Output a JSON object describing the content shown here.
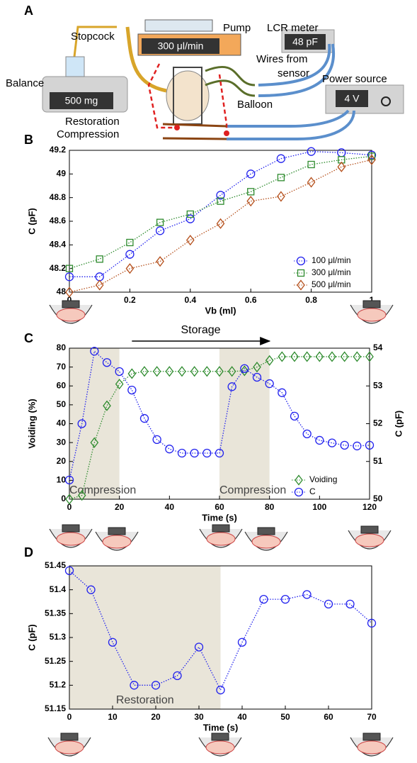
{
  "diagram": {
    "label": "A",
    "stopcock": "Stopcock",
    "pump": "Pump",
    "pump_display": "300 μl/min",
    "lcr": "LCR meter",
    "lcr_display": "48 pF",
    "wires": [
      "Wires from",
      "sensor"
    ],
    "power": "Power source",
    "power_display": "4 V",
    "balance": "Balance",
    "balance_display": "500 mg",
    "balloon": "Balloon",
    "restoration": "Restoration",
    "compression": "Compression"
  },
  "chart_data": [
    {
      "type": "line",
      "label": "B",
      "xlabel": "Vb (ml)",
      "ylabel": "C (pF)",
      "x": [
        0,
        0.1,
        0.2,
        0.3,
        0.4,
        0.5,
        0.6,
        0.7,
        0.8,
        0.9,
        1
      ],
      "xlim": [
        0,
        1
      ],
      "xticks": [
        0,
        0.2,
        0.4,
        0.6,
        0.8,
        1
      ],
      "ylim": [
        48,
        49.2
      ],
      "yticks": [
        48,
        48.2,
        48.4,
        48.6,
        48.8,
        49,
        49.2
      ],
      "legend": "lower right",
      "series": [
        {
          "name": "100 μl/min",
          "color": "#2222ee",
          "marker": "circle",
          "values": [
            48.13,
            48.13,
            48.32,
            48.52,
            48.62,
            48.82,
            49.0,
            49.13,
            49.19,
            49.18,
            49.16
          ]
        },
        {
          "name": "300 μl/min",
          "color": "#2e8b2e",
          "marker": "square",
          "values": [
            48.2,
            48.28,
            48.42,
            48.59,
            48.66,
            48.77,
            48.85,
            48.97,
            49.08,
            49.12,
            49.15
          ]
        },
        {
          "name": "500 μl/min",
          "color": "#b5501c",
          "marker": "diamond",
          "values": [
            48.0,
            48.06,
            48.2,
            48.26,
            48.44,
            48.58,
            48.77,
            48.81,
            48.93,
            49.06,
            49.12
          ]
        }
      ]
    },
    {
      "type": "line",
      "label": "C",
      "xlabel": "Time (s)",
      "ylabel": "Voiding (%)",
      "y2label": "C (pF)",
      "x": [
        0,
        5,
        10,
        15,
        20,
        25,
        30,
        35,
        40,
        45,
        50,
        55,
        60,
        65,
        70,
        75,
        80,
        85,
        90,
        95,
        100,
        105,
        110,
        115,
        120
      ],
      "xlim": [
        0,
        120
      ],
      "xticks": [
        0,
        20,
        40,
        60,
        80,
        100,
        120
      ],
      "ylim": [
        0,
        80
      ],
      "yticks": [
        0,
        10,
        20,
        30,
        40,
        50,
        60,
        70,
        80
      ],
      "y2lim": [
        50,
        54
      ],
      "y2ticks": [
        50,
        51,
        52,
        53,
        54
      ],
      "legend": "lower right",
      "spans": [
        {
          "x": [
            0,
            20
          ],
          "label": "Compression"
        },
        {
          "x": [
            60,
            80
          ],
          "label": "Compression"
        }
      ],
      "arrow": {
        "label": "Storage",
        "from": 25,
        "to": 80
      },
      "series": [
        {
          "name": "Voiding",
          "color": "#2e8b2e",
          "marker": "diamond",
          "values": [
            0,
            2,
            30,
            49.5,
            61,
            66.5,
            67.7,
            67.7,
            67.7,
            67.7,
            67.7,
            67.7,
            67.7,
            67.7,
            68,
            70,
            73.5,
            75.5,
            75.5,
            75.5,
            75.5,
            75.5,
            75.5,
            75.5,
            75.5
          ]
        },
        {
          "name": "C",
          "color": "#2222ee",
          "marker": "circle",
          "axis": "y2",
          "values": [
            50.51,
            52.0,
            53.92,
            53.62,
            53.38,
            52.89,
            52.14,
            51.58,
            51.33,
            51.22,
            51.22,
            51.22,
            51.22,
            52.98,
            53.46,
            53.23,
            53.06,
            52.82,
            52.2,
            51.73,
            51.56,
            51.49,
            51.43,
            51.41,
            51.43
          ]
        }
      ]
    },
    {
      "type": "line",
      "label": "D",
      "xlabel": "Time (s)",
      "ylabel": "C (pF)",
      "x": [
        0,
        5,
        10,
        15,
        20,
        25,
        30,
        35,
        40,
        45,
        50,
        55,
        60,
        65,
        70
      ],
      "xlim": [
        0,
        70
      ],
      "xticks": [
        0,
        10,
        20,
        30,
        40,
        50,
        60,
        70
      ],
      "ylim": [
        51.15,
        51.45
      ],
      "yticks": [
        51.15,
        51.2,
        51.25,
        51.3,
        51.35,
        51.4,
        51.45
      ],
      "spans": [
        {
          "x": [
            0,
            35
          ],
          "label": "Restoration"
        }
      ],
      "series": [
        {
          "color": "#2222ee",
          "marker": "circle",
          "values": [
            51.44,
            51.4,
            51.29,
            51.2,
            51.2,
            51.22,
            51.28,
            51.19,
            51.29,
            51.38,
            51.38,
            51.39,
            51.37,
            51.37,
            51.33
          ]
        }
      ]
    }
  ]
}
